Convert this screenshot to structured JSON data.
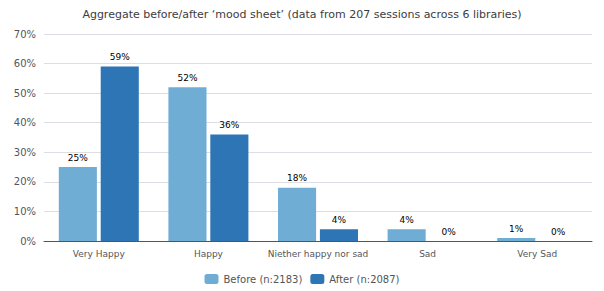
{
  "chart_data": {
    "type": "bar",
    "title": "Aggregate before/after ‘mood sheet’ (data from 207 sessions across 6 libraries)",
    "categories": [
      "Very Happy",
      "Happy",
      "Niether happy nor sad",
      "Sad",
      "Very Sad"
    ],
    "series": [
      {
        "name": "Before (n:2183)",
        "color": "#70add4",
        "values": [
          25,
          52,
          18,
          4,
          1
        ],
        "value_labels": [
          "25%",
          "52%",
          "18%",
          "4%",
          "1%"
        ]
      },
      {
        "name": "After (n:2087)",
        "color": "#2e75b6",
        "values": [
          59,
          36,
          4,
          0,
          0
        ],
        "value_labels": [
          "59%",
          "36%",
          "4%",
          "0%",
          "0%"
        ]
      }
    ],
    "ylim": [
      0,
      70
    ],
    "yticks": [
      {
        "value": 0,
        "label": "0%"
      },
      {
        "value": 10,
        "label": "10%"
      },
      {
        "value": 20,
        "label": "20%"
      },
      {
        "value": 30,
        "label": "30%"
      },
      {
        "value": 40,
        "label": "40%"
      },
      {
        "value": 50,
        "label": "50%"
      },
      {
        "value": 60,
        "label": "60%"
      },
      {
        "value": 70,
        "label": "70%"
      }
    ],
    "grid": true,
    "legend": "bottom",
    "data_labels": true
  }
}
